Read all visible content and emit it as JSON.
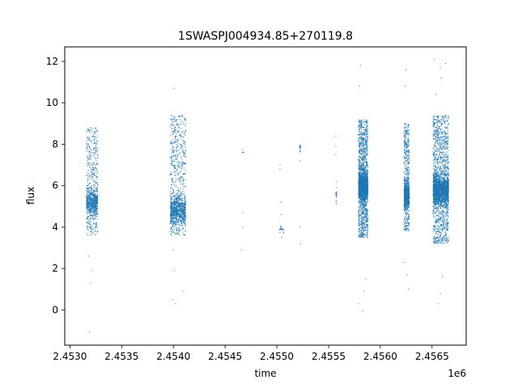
{
  "chart_data": {
    "type": "scatter",
    "title": "1SWASPJ004934.85+270119.8",
    "xlabel": "time",
    "ylabel": "flux",
    "x_offset_label": "1e6",
    "xlim": [
      2.45295,
      2.45683
    ],
    "ylim": [
      -1.7,
      12.7
    ],
    "x_ticks": [
      2.453,
      2.4535,
      2.454,
      2.4545,
      2.455,
      2.4555,
      2.456,
      2.4565
    ],
    "x_tick_labels": [
      "2.4530",
      "2.4535",
      "2.4540",
      "2.4545",
      "2.4550",
      "2.4555",
      "2.4560",
      "2.4565"
    ],
    "y_ticks": [
      0,
      2,
      4,
      6,
      8,
      10,
      12
    ],
    "y_tick_labels": [
      "0",
      "2",
      "4",
      "6",
      "8",
      "10",
      "12"
    ],
    "grid": false,
    "marker_color": "#1f77b4",
    "clusters": [
      {
        "x_range": [
          2.45316,
          2.45327
        ],
        "core": [
          3.6,
          8.8
        ],
        "center": 5.2,
        "n": 900,
        "outliers": [
          [
            2.45319,
            -1.05
          ],
          [
            2.4532,
            1.3
          ],
          [
            2.45321,
            1.9
          ],
          [
            2.45318,
            2.6
          ]
        ]
      },
      {
        "x_range": [
          2.45397,
          2.45412
        ],
        "core": [
          3.6,
          9.4
        ],
        "center": 4.8,
        "n": 1200,
        "outliers": [
          [
            2.45401,
            10.7
          ],
          [
            2.45399,
            0.5
          ],
          [
            2.45402,
            0.3
          ],
          [
            2.45409,
            0.9
          ],
          [
            2.45401,
            1.9
          ],
          [
            2.454,
            2.9
          ]
        ]
      },
      {
        "x_range": [
          2.45466,
          2.45468
        ],
        "core": [
          7.5,
          7.8
        ],
        "center": 7.6,
        "n": 4,
        "outliers": [
          [
            2.45467,
            4.7
          ],
          [
            2.45467,
            4.0
          ],
          [
            2.45466,
            2.9
          ]
        ]
      },
      {
        "x_range": [
          2.45502,
          2.45507
        ],
        "core": [
          3.7,
          4.1
        ],
        "center": 3.9,
        "n": 20,
        "outliers": [
          [
            2.45503,
            7.0
          ],
          [
            2.45503,
            6.8
          ],
          [
            2.45504,
            5.2
          ],
          [
            2.45504,
            4.6
          ],
          [
            2.45505,
            3.5
          ]
        ]
      },
      {
        "x_range": [
          2.45522,
          2.45523
        ],
        "core": [
          7.6,
          8.3
        ],
        "center": 7.9,
        "n": 14,
        "outliers": [
          [
            2.45522,
            7.2
          ],
          [
            2.45522,
            4.0
          ],
          [
            2.45523,
            3.2
          ]
        ]
      },
      {
        "x_range": [
          2.45557,
          2.45558
        ],
        "core": [
          5.0,
          6.2
        ],
        "center": 5.6,
        "n": 18,
        "outliers": [
          [
            2.45557,
            8.4
          ],
          [
            2.45557,
            7.9
          ],
          [
            2.45557,
            7.5
          ]
        ]
      },
      {
        "x_range": [
          2.45579,
          2.45588
        ],
        "core": [
          3.5,
          9.2
        ],
        "center": 6.0,
        "n": 2400,
        "outliers": [
          [
            2.45581,
            11.8
          ],
          [
            2.4558,
            10.8
          ],
          [
            2.45579,
            0.3
          ],
          [
            2.45583,
            -0.05
          ],
          [
            2.45584,
            0.9
          ],
          [
            2.45586,
            1.5
          ]
        ]
      },
      {
        "x_range": [
          2.45623,
          2.45628
        ],
        "core": [
          3.8,
          9.0
        ],
        "center": 5.5,
        "n": 1000,
        "outliers": [
          [
            2.45625,
            11.6
          ],
          [
            2.45624,
            10.8
          ],
          [
            2.45627,
            1.0
          ],
          [
            2.45626,
            1.7
          ],
          [
            2.45623,
            2.3
          ]
        ]
      },
      {
        "x_range": [
          2.45651,
          2.45666
        ],
        "core": [
          3.2,
          9.4
        ],
        "center": 5.8,
        "n": 2600,
        "outliers": [
          [
            2.45652,
            12.1
          ],
          [
            2.45658,
            11.7
          ],
          [
            2.45659,
            11.2
          ],
          [
            2.45663,
            11.9
          ],
          [
            2.45656,
            0.3
          ],
          [
            2.45658,
            0.8
          ],
          [
            2.4566,
            1.6
          ],
          [
            2.45654,
            10.4
          ]
        ]
      }
    ]
  }
}
